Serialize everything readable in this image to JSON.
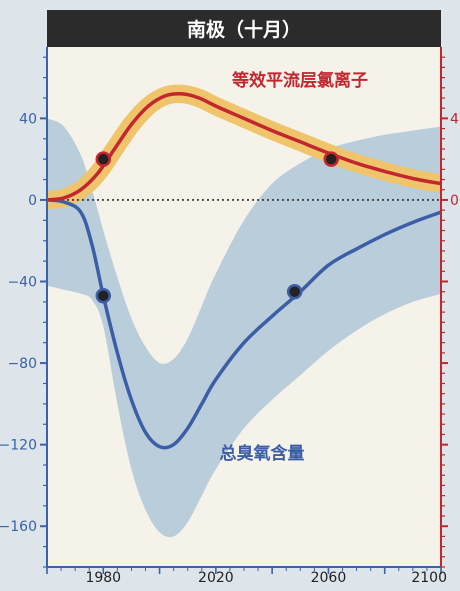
{
  "chart_data": {
    "type": "line",
    "title": "南极（十月）",
    "x_ticks": [
      1980,
      2020,
      2060,
      2100
    ],
    "xlim": [
      1960,
      2100
    ],
    "left_axis": {
      "ticks": [
        40,
        0,
        -40,
        -80,
        -120,
        -160
      ],
      "ylim": [
        -180,
        75
      ],
      "color": "#3a62a8"
    },
    "right_axis": {
      "ticks": [
        4,
        0
      ],
      "color": "#c2262e"
    },
    "zero_line": true,
    "series": [
      {
        "name": "等效平流层氯离子",
        "color": "#c2262e",
        "band_color": "#efc46a",
        "x": [
          1960,
          1966,
          1972,
          1978,
          1984,
          1990,
          1996,
          2002,
          2008,
          2014,
          2020,
          2030,
          2040,
          2050,
          2060,
          2070,
          2080,
          2090,
          2100
        ],
        "y": [
          0,
          1,
          5,
          13,
          25,
          37,
          46,
          51,
          52,
          50,
          46,
          40,
          34,
          28.5,
          23,
          18,
          14,
          10.5,
          8
        ],
        "band_halfwidth": 4.5,
        "markers": [
          {
            "x": 1980,
            "y": 20
          },
          {
            "x": 2061,
            "y": 20
          }
        ]
      },
      {
        "name": "总臭氧含量",
        "color": "#3b5ea6",
        "band_color": "#b9cddb",
        "x": [
          1960,
          1966,
          1972,
          1976,
          1980,
          1985,
          1990,
          1995,
          2000,
          2005,
          2010,
          2015,
          2020,
          2030,
          2040,
          2050,
          2060,
          2070,
          2080,
          2090,
          2100
        ],
        "y": [
          0,
          -1,
          -6,
          -22,
          -47,
          -75,
          -98,
          -114,
          -121,
          -120,
          -112,
          -100,
          -88,
          -70,
          -57,
          -45,
          -32,
          -24,
          -17,
          -11,
          -6
        ],
        "band_upper": [
          40,
          36,
          22,
          5,
          -15,
          -38,
          -58,
          -72,
          -80,
          -78,
          -68,
          -52,
          -36,
          -10,
          8,
          18,
          25,
          29,
          32,
          34,
          36
        ],
        "band_lower": [
          -42,
          -44,
          -46,
          -49,
          -62,
          -100,
          -132,
          -152,
          -163,
          -165,
          -158,
          -145,
          -132,
          -112,
          -98,
          -86,
          -74,
          -64,
          -56,
          -50,
          -46
        ],
        "markers": [
          {
            "x": 1980,
            "y": -47
          },
          {
            "x": 2048,
            "y": -45
          }
        ]
      }
    ]
  }
}
